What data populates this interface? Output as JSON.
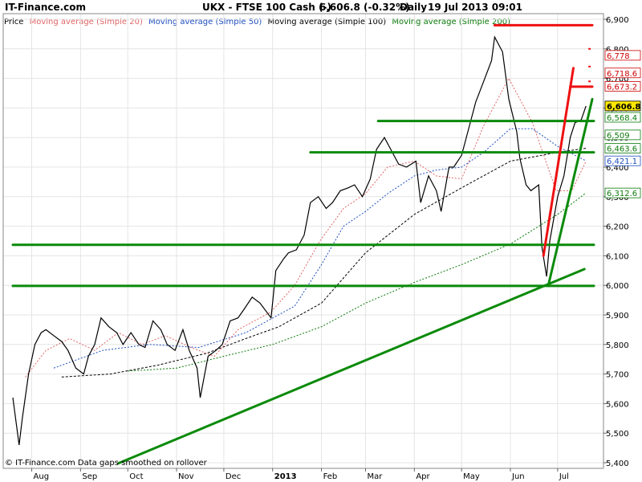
{
  "header": {
    "brand": "IT-Finance.com",
    "title": "UKX - FTSE 100 Cash (-)",
    "price": "6,606.8 (-0.32%)",
    "period": "Daily",
    "datetime": "19 Jul 2013 09:01"
  },
  "footer": {
    "credit": "© IT-Finance.com  Data gaps smoothed on rollover"
  },
  "colors": {
    "ma20": "#e06666",
    "ma50": "#1f4fbf",
    "ma100": "#000000",
    "ma200": "#0a7a0a",
    "candle": "#000000",
    "support": "#0a8a0a",
    "resistance": "#ee1111"
  },
  "chart_data": {
    "type": "line",
    "legend": {
      "price_label": "Price",
      "items": [
        {
          "label": "Moving average (Simple 20)",
          "color": "#e06666"
        },
        {
          "label": "Moving average (Simple 50)",
          "color": "#1f4fbf"
        },
        {
          "label": "Moving average (Simple 100)",
          "color": "#000000"
        },
        {
          "label": "Moving average (Simple 200)",
          "color": "#0a7a0a"
        }
      ]
    },
    "ylim": [
      5400,
      6900
    ],
    "y_ticks": [
      {
        "value": 5400,
        "label": "5,400"
      },
      {
        "value": 5500,
        "label": "5,500"
      },
      {
        "value": 5600,
        "label": "5,600"
      },
      {
        "value": 5700,
        "label": "5,700"
      },
      {
        "value": 5800,
        "label": "5,800"
      },
      {
        "value": 5900,
        "label": "5,900"
      },
      {
        "value": 6000,
        "label": "6,000"
      },
      {
        "value": 6100,
        "label": "6,100"
      },
      {
        "value": 6200,
        "label": "6,200"
      },
      {
        "value": 6300,
        "label": "6,300"
      },
      {
        "value": 6400,
        "label": "6,400"
      },
      {
        "value": 6500,
        "label": "6,500"
      },
      {
        "value": 6600,
        "label": "6,600"
      },
      {
        "value": 6700,
        "label": "6,700"
      },
      {
        "value": 6800,
        "label": "6,800"
      },
      {
        "value": 6900,
        "label": "6,900"
      }
    ],
    "x_ticks": [
      {
        "date": "2012-08-01",
        "label": "Aug",
        "bold": false
      },
      {
        "date": "2012-09-01",
        "label": "Sep",
        "bold": false
      },
      {
        "date": "2012-10-01",
        "label": "Oct",
        "bold": false
      },
      {
        "date": "2012-11-01",
        "label": "Nov",
        "bold": false
      },
      {
        "date": "2012-12-01",
        "label": "Dec",
        "bold": false
      },
      {
        "date": "2013-01-01",
        "label": "2013",
        "bold": true
      },
      {
        "date": "2013-02-01",
        "label": "Feb",
        "bold": false
      },
      {
        "date": "2013-03-01",
        "label": "Mar",
        "bold": false
      },
      {
        "date": "2013-04-01",
        "label": "Apr",
        "bold": false
      },
      {
        "date": "2013-05-01",
        "label": "May",
        "bold": false
      },
      {
        "date": "2013-06-01",
        "label": "Jun",
        "bold": false
      },
      {
        "date": "2013-07-01",
        "label": "Jul",
        "bold": false
      }
    ],
    "price": [
      [
        "2012-07-20",
        5620
      ],
      [
        "2012-07-24",
        5460
      ],
      [
        "2012-07-26",
        5550
      ],
      [
        "2012-07-30",
        5700
      ],
      [
        "2012-08-03",
        5800
      ],
      [
        "2012-08-07",
        5840
      ],
      [
        "2012-08-10",
        5850
      ],
      [
        "2012-08-15",
        5830
      ],
      [
        "2012-08-20",
        5810
      ],
      [
        "2012-08-24",
        5780
      ],
      [
        "2012-08-29",
        5720
      ],
      [
        "2012-09-03",
        5700
      ],
      [
        "2012-09-06",
        5760
      ],
      [
        "2012-09-10",
        5800
      ],
      [
        "2012-09-14",
        5890
      ],
      [
        "2012-09-19",
        5860
      ],
      [
        "2012-09-24",
        5840
      ],
      [
        "2012-09-28",
        5800
      ],
      [
        "2012-10-03",
        5840
      ],
      [
        "2012-10-08",
        5800
      ],
      [
        "2012-10-12",
        5790
      ],
      [
        "2012-10-17",
        5880
      ],
      [
        "2012-10-22",
        5850
      ],
      [
        "2012-10-26",
        5800
      ],
      [
        "2012-10-31",
        5780
      ],
      [
        "2012-11-05",
        5850
      ],
      [
        "2012-11-09",
        5780
      ],
      [
        "2012-11-14",
        5720
      ],
      [
        "2012-11-16",
        5620
      ],
      [
        "2012-11-21",
        5760
      ],
      [
        "2012-11-26",
        5780
      ],
      [
        "2012-11-30",
        5800
      ],
      [
        "2012-12-05",
        5880
      ],
      [
        "2012-12-10",
        5890
      ],
      [
        "2012-12-14",
        5920
      ],
      [
        "2012-12-19",
        5960
      ],
      [
        "2012-12-24",
        5940
      ],
      [
        "2012-12-31",
        5890
      ],
      [
        "2013-01-03",
        6050
      ],
      [
        "2013-01-08",
        6090
      ],
      [
        "2013-01-11",
        6110
      ],
      [
        "2013-01-16",
        6120
      ],
      [
        "2013-01-21",
        6170
      ],
      [
        "2013-01-25",
        6280
      ],
      [
        "2013-01-30",
        6300
      ],
      [
        "2013-02-04",
        6260
      ],
      [
        "2013-02-08",
        6280
      ],
      [
        "2013-02-13",
        6320
      ],
      [
        "2013-02-18",
        6330
      ],
      [
        "2013-02-22",
        6340
      ],
      [
        "2013-02-27",
        6300
      ],
      [
        "2013-03-04",
        6360
      ],
      [
        "2013-03-08",
        6460
      ],
      [
        "2013-03-13",
        6500
      ],
      [
        "2013-03-18",
        6450
      ],
      [
        "2013-03-22",
        6410
      ],
      [
        "2013-03-27",
        6400
      ],
      [
        "2013-04-02",
        6420
      ],
      [
        "2013-04-05",
        6280
      ],
      [
        "2013-04-10",
        6370
      ],
      [
        "2013-04-15",
        6320
      ],
      [
        "2013-04-18",
        6250
      ],
      [
        "2013-04-23",
        6400
      ],
      [
        "2013-04-26",
        6400
      ],
      [
        "2013-05-01",
        6440
      ],
      [
        "2013-05-06",
        6540
      ],
      [
        "2013-05-10",
        6620
      ],
      [
        "2013-05-15",
        6690
      ],
      [
        "2013-05-20",
        6760
      ],
      [
        "2013-05-22",
        6840
      ],
      [
        "2013-05-27",
        6790
      ],
      [
        "2013-05-31",
        6630
      ],
      [
        "2013-06-05",
        6520
      ],
      [
        "2013-06-07",
        6430
      ],
      [
        "2013-06-11",
        6340
      ],
      [
        "2013-06-14",
        6320
      ],
      [
        "2013-06-19",
        6340
      ],
      [
        "2013-06-21",
        6130
      ],
      [
        "2013-06-24",
        6030
      ],
      [
        "2013-06-26",
        6150
      ],
      [
        "2013-07-01",
        6300
      ],
      [
        "2013-07-05",
        6370
      ],
      [
        "2013-07-09",
        6500
      ],
      [
        "2013-07-12",
        6550
      ],
      [
        "2013-07-16",
        6560
      ],
      [
        "2013-07-19",
        6606.8
      ]
    ],
    "ma20": [
      [
        "2012-07-28",
        5690
      ],
      [
        "2012-08-10",
        5780
      ],
      [
        "2012-08-25",
        5820
      ],
      [
        "2012-09-10",
        5780
      ],
      [
        "2012-09-25",
        5840
      ],
      [
        "2012-10-10",
        5800
      ],
      [
        "2012-10-25",
        5830
      ],
      [
        "2012-11-10",
        5790
      ],
      [
        "2012-11-25",
        5760
      ],
      [
        "2012-12-10",
        5850
      ],
      [
        "2012-12-31",
        5910
      ],
      [
        "2013-01-15",
        6000
      ],
      [
        "2013-01-31",
        6150
      ],
      [
        "2013-02-15",
        6260
      ],
      [
        "2013-03-01",
        6310
      ],
      [
        "2013-03-15",
        6400
      ],
      [
        "2013-04-01",
        6420
      ],
      [
        "2013-04-15",
        6370
      ],
      [
        "2013-05-01",
        6360
      ],
      [
        "2013-05-15",
        6540
      ],
      [
        "2013-05-31",
        6700
      ],
      [
        "2013-06-15",
        6550
      ],
      [
        "2013-06-30",
        6320
      ],
      [
        "2013-07-10",
        6320
      ],
      [
        "2013-07-19",
        6420
      ]
    ],
    "ma50": [
      [
        "2012-08-15",
        5720
      ],
      [
        "2012-09-15",
        5780
      ],
      [
        "2012-10-15",
        5800
      ],
      [
        "2012-11-15",
        5790
      ],
      [
        "2012-12-15",
        5840
      ],
      [
        "2013-01-15",
        5930
      ],
      [
        "2013-02-01",
        6070
      ],
      [
        "2013-02-15",
        6200
      ],
      [
        "2013-03-01",
        6250
      ],
      [
        "2013-03-15",
        6310
      ],
      [
        "2013-04-01",
        6370
      ],
      [
        "2013-04-15",
        6390
      ],
      [
        "2013-05-01",
        6400
      ],
      [
        "2013-05-15",
        6450
      ],
      [
        "2013-06-01",
        6530
      ],
      [
        "2013-06-15",
        6530
      ],
      [
        "2013-07-01",
        6470
      ],
      [
        "2013-07-19",
        6421.1
      ]
    ],
    "ma100": [
      [
        "2012-08-20",
        5690
      ],
      [
        "2012-09-20",
        5700
      ],
      [
        "2012-10-20",
        5730
      ],
      [
        "2012-11-20",
        5770
      ],
      [
        "2012-12-15",
        5820
      ],
      [
        "2013-01-05",
        5860
      ],
      [
        "2013-02-01",
        5940
      ],
      [
        "2013-03-01",
        6110
      ],
      [
        "2013-04-01",
        6240
      ],
      [
        "2013-05-01",
        6330
      ],
      [
        "2013-06-01",
        6420
      ],
      [
        "2013-07-01",
        6450
      ],
      [
        "2013-07-19",
        6463.6
      ]
    ],
    "ma200": [
      [
        "2012-10-01",
        5710
      ],
      [
        "2012-11-01",
        5720
      ],
      [
        "2012-12-01",
        5760
      ],
      [
        "2013-01-01",
        5800
      ],
      [
        "2013-02-01",
        5860
      ],
      [
        "2013-03-01",
        5940
      ],
      [
        "2013-04-01",
        6010
      ],
      [
        "2013-05-01",
        6070
      ],
      [
        "2013-06-01",
        6140
      ],
      [
        "2013-07-01",
        6240
      ],
      [
        "2013-07-19",
        6312.6
      ]
    ],
    "lines": [
      {
        "color": "green",
        "points": [
          [
            "2013-03-09",
            6556
          ],
          [
            "2013-07-24",
            6556
          ]
        ]
      },
      {
        "color": "green",
        "points": [
          [
            "2013-01-25",
            6450
          ],
          [
            "2013-07-24",
            6450
          ]
        ]
      },
      {
        "color": "green",
        "points": [
          [
            "2012-07-20",
            6137
          ],
          [
            "2013-07-24",
            6137
          ]
        ]
      },
      {
        "color": "green",
        "points": [
          [
            "2012-07-20",
            5998
          ],
          [
            "2013-07-24",
            5998
          ]
        ]
      },
      {
        "color": "green",
        "points": [
          [
            "2012-09-25",
            5398
          ],
          [
            "2013-07-18",
            6055
          ]
        ]
      },
      {
        "color": "green",
        "points": [
          [
            "2013-06-25",
            5998
          ],
          [
            "2013-07-23",
            6630
          ]
        ]
      },
      {
        "color": "red",
        "points": [
          [
            "2013-05-22",
            6880
          ],
          [
            "2013-07-23",
            6880
          ]
        ]
      },
      {
        "color": "red",
        "points": [
          [
            "2013-07-09",
            6672
          ],
          [
            "2013-07-23",
            6672
          ]
        ]
      },
      {
        "color": "red",
        "points": [
          [
            "2013-06-22",
            6100
          ],
          [
            "2013-07-11",
            6735
          ]
        ]
      }
    ],
    "red_ticks": [
      [
        "2013-07-21",
        6800
      ],
      [
        "2013-07-21",
        6740
      ],
      [
        "2013-07-21",
        6690
      ]
    ],
    "value_labels": [
      {
        "value": 6778,
        "label": "6,778",
        "color": "#cc0000",
        "bold": false
      },
      {
        "value": 6718.6,
        "label": "6,718.6",
        "color": "#cc0000",
        "bold": false
      },
      {
        "value": 6673.2,
        "label": "6,673.2",
        "color": "#cc0000",
        "bold": false
      },
      {
        "value": 6606.8,
        "label": "6,606.8",
        "color": "#000000",
        "bold": true
      },
      {
        "value": 6568.4,
        "label": "6,568.4",
        "color": "#0a7a0a",
        "bold": false
      },
      {
        "value": 6509,
        "label": "6,509",
        "color": "#0a7a0a",
        "bold": false
      },
      {
        "value": 6463.6,
        "label": "6,463.6",
        "color": "#0a7a0a",
        "bold": false
      },
      {
        "value": 6421.1,
        "label": "6,421.1",
        "color": "#1f4fbf",
        "bold": false
      },
      {
        "value": 6312.6,
        "label": "6,312.6",
        "color": "#0a7a0a",
        "bold": false
      }
    ]
  }
}
